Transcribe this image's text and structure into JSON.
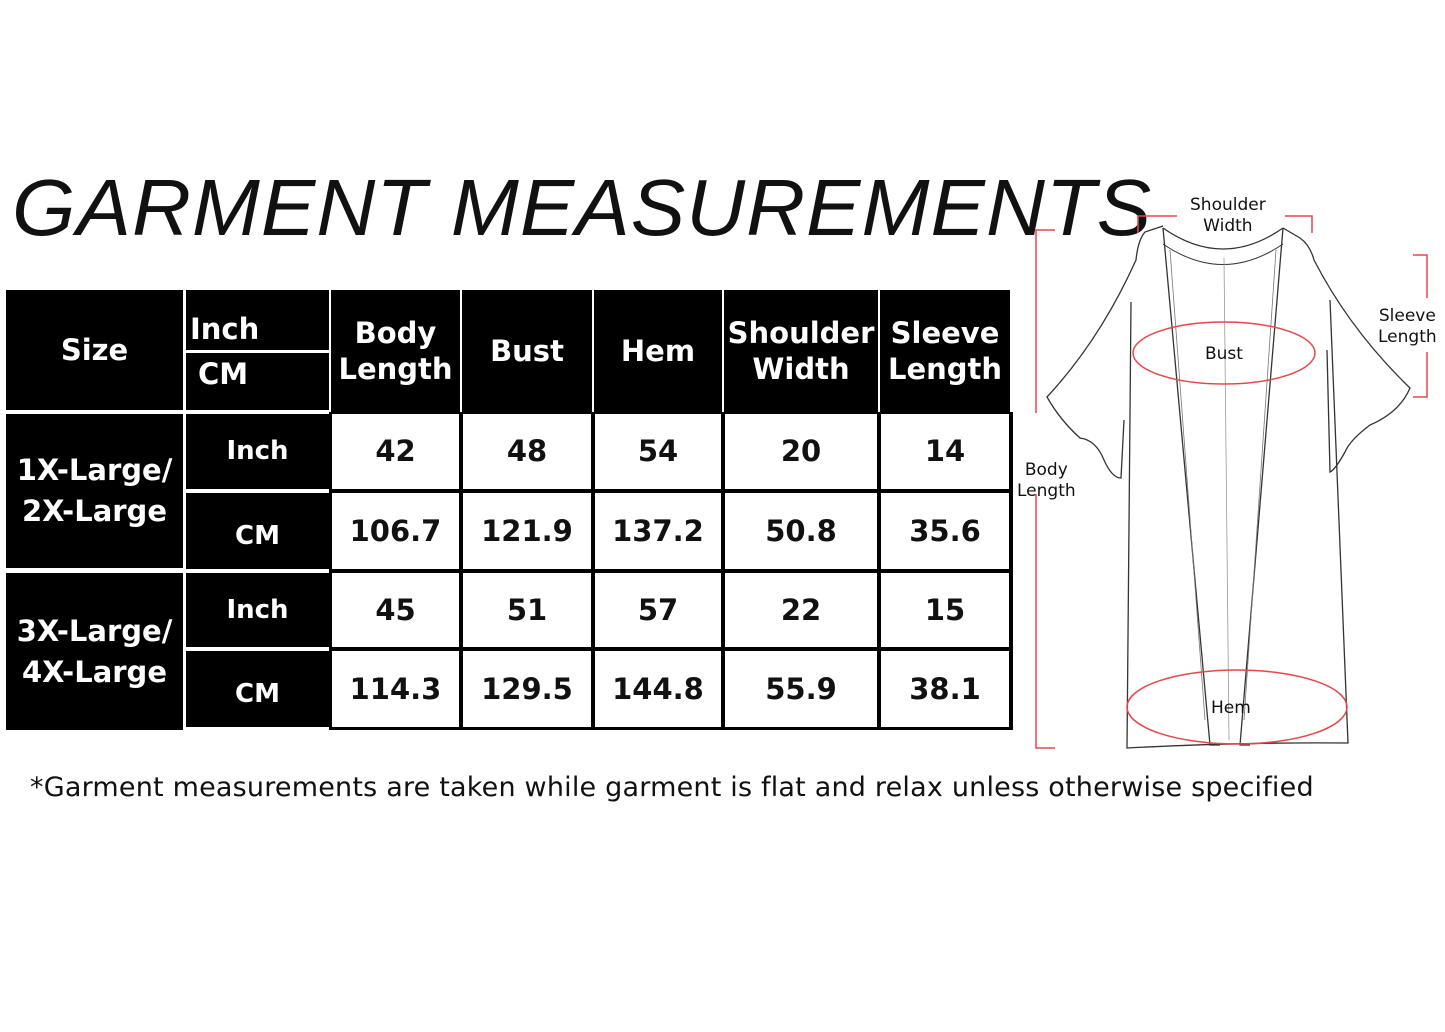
{
  "title": "GARMENT MEASUREMENTS",
  "table": {
    "header": {
      "size": "Size",
      "unit_top": "Inch",
      "unit_bottom": "CM",
      "columns": [
        [
          "Body",
          "Length"
        ],
        [
          "Bust",
          ""
        ],
        [
          "Hem",
          ""
        ],
        [
          "Shoulder",
          "Width"
        ],
        [
          "Sleeve",
          "Length"
        ]
      ]
    },
    "groups": [
      {
        "size": [
          "1X-Large/",
          "2X-Large"
        ],
        "rows": [
          {
            "unit": "Inch",
            "values": [
              "42",
              "48",
              "54",
              "20",
              "14"
            ]
          },
          {
            "unit": "CM",
            "values": [
              "106.7",
              "121.9",
              "137.2",
              "50.8",
              "35.6"
            ]
          }
        ]
      },
      {
        "size": [
          "3X-Large/",
          "4X-Large"
        ],
        "rows": [
          {
            "unit": "Inch",
            "values": [
              "45",
              "51",
              "57",
              "22",
              "15"
            ]
          },
          {
            "unit": "CM",
            "values": [
              "114.3",
              "129.5",
              "144.8",
              "55.9",
              "38.1"
            ]
          }
        ]
      }
    ]
  },
  "note": "*Garment measurements are taken while garment is flat and relax unless otherwise specified",
  "diagram": {
    "labels": {
      "shoulder": [
        "Shoulder",
        "Width"
      ],
      "sleeve": [
        "Sleeve",
        "Length"
      ],
      "bust": "Bust",
      "body": [
        "Body",
        "Length"
      ],
      "hem": "Hem"
    },
    "accent_color": "#e8474a",
    "outline_color": "#333333"
  }
}
